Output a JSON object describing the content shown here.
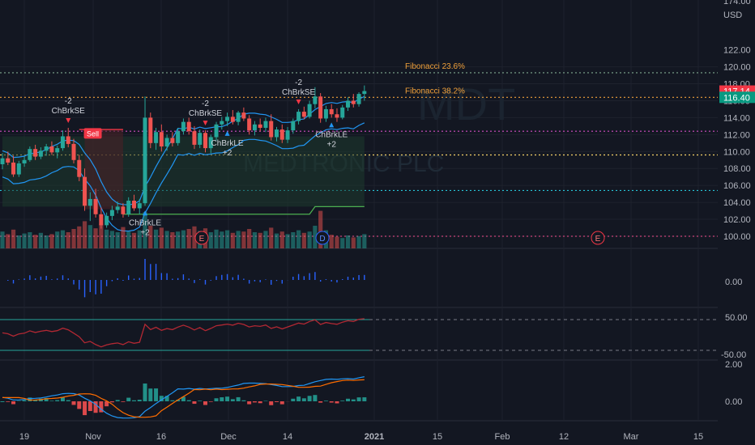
{
  "chart_data": {
    "type": "candlestick",
    "symbol": "MDT",
    "watermark": "MEDTRONIC PLC",
    "currency": "USD",
    "price_axis": {
      "min": 99.5,
      "max": 174.0,
      "ticks": [
        "174.00",
        "122.00",
        "120.00",
        "118.00",
        "116.00",
        "114.00",
        "112.00",
        "110.00",
        "108.00",
        "106.00",
        "104.00",
        "102.00",
        "100.00"
      ]
    },
    "x_ticks": [
      "19",
      "Nov",
      "16",
      "Dec",
      "14",
      "2021",
      "15",
      "Feb",
      "12",
      "Mar",
      "15"
    ],
    "price_badges": [
      {
        "text": "117.14",
        "value": 117.14,
        "color": "#f23645"
      },
      {
        "text": "116.40",
        "value": 116.4,
        "color": "#089981"
      }
    ],
    "fibonacci": [
      {
        "label": "Fibonacci 23.6%",
        "value": 119.3
      },
      {
        "label": "Fibonacci 38.2%",
        "value": 116.4
      }
    ],
    "horizontal_levels": [
      {
        "value": 119.3,
        "color": "#7fa88f"
      },
      {
        "value": 116.4,
        "color": "#f0a03a"
      },
      {
        "value": 112.4,
        "color": "#d24dc1"
      },
      {
        "value": 109.6,
        "color": "#f5d26a"
      },
      {
        "value": 105.4,
        "color": "#26c6da"
      },
      {
        "value": 100.0,
        "color": "#c9437a"
      }
    ],
    "candles": [
      {
        "o": 108.5,
        "h": 109.8,
        "l": 107.9,
        "c": 109.2
      },
      {
        "o": 109.2,
        "h": 110.0,
        "l": 108.4,
        "c": 108.7
      },
      {
        "o": 108.7,
        "h": 109.5,
        "l": 107.0,
        "c": 107.3
      },
      {
        "o": 107.3,
        "h": 108.9,
        "l": 107.0,
        "c": 108.6
      },
      {
        "o": 108.6,
        "h": 109.4,
        "l": 108.2,
        "c": 109.0
      },
      {
        "o": 109.0,
        "h": 110.6,
        "l": 108.8,
        "c": 110.3
      },
      {
        "o": 110.3,
        "h": 110.8,
        "l": 109.0,
        "c": 109.4
      },
      {
        "o": 109.4,
        "h": 110.5,
        "l": 109.1,
        "c": 110.1
      },
      {
        "o": 110.1,
        "h": 110.9,
        "l": 109.5,
        "c": 110.6
      },
      {
        "o": 110.6,
        "h": 111.2,
        "l": 109.6,
        "c": 109.9
      },
      {
        "o": 109.9,
        "h": 110.7,
        "l": 109.2,
        "c": 110.4
      },
      {
        "o": 110.4,
        "h": 112.5,
        "l": 110.1,
        "c": 111.8
      },
      {
        "o": 111.8,
        "h": 112.8,
        "l": 110.5,
        "c": 110.9
      },
      {
        "o": 110.9,
        "h": 111.5,
        "l": 108.6,
        "c": 109.0
      },
      {
        "o": 109.0,
        "h": 109.6,
        "l": 106.5,
        "c": 107.0
      },
      {
        "o": 107.0,
        "h": 108.0,
        "l": 103.0,
        "c": 103.6
      },
      {
        "o": 103.6,
        "h": 105.2,
        "l": 101.8,
        "c": 104.4
      },
      {
        "o": 104.4,
        "h": 105.6,
        "l": 102.2,
        "c": 102.6
      },
      {
        "o": 102.6,
        "h": 103.4,
        "l": 100.9,
        "c": 101.3
      },
      {
        "o": 101.3,
        "h": 102.8,
        "l": 101.0,
        "c": 102.4
      },
      {
        "o": 102.4,
        "h": 103.6,
        "l": 101.9,
        "c": 103.1
      },
      {
        "o": 103.1,
        "h": 104.1,
        "l": 102.7,
        "c": 103.5
      },
      {
        "o": 103.5,
        "h": 103.9,
        "l": 102.2,
        "c": 102.6
      },
      {
        "o": 102.6,
        "h": 104.6,
        "l": 102.3,
        "c": 104.2
      },
      {
        "o": 104.2,
        "h": 104.9,
        "l": 103.0,
        "c": 103.3
      },
      {
        "o": 103.3,
        "h": 104.4,
        "l": 102.6,
        "c": 103.9
      },
      {
        "o": 103.9,
        "h": 116.5,
        "l": 103.6,
        "c": 114.0
      },
      {
        "o": 114.0,
        "h": 114.6,
        "l": 110.4,
        "c": 111.0
      },
      {
        "o": 111.0,
        "h": 112.8,
        "l": 110.2,
        "c": 112.3
      },
      {
        "o": 112.3,
        "h": 113.2,
        "l": 110.0,
        "c": 110.6
      },
      {
        "o": 110.6,
        "h": 112.0,
        "l": 110.1,
        "c": 111.6
      },
      {
        "o": 111.6,
        "h": 112.3,
        "l": 110.6,
        "c": 111.0
      },
      {
        "o": 111.0,
        "h": 112.8,
        "l": 110.7,
        "c": 112.4
      },
      {
        "o": 112.4,
        "h": 113.9,
        "l": 112.0,
        "c": 113.5
      },
      {
        "o": 113.5,
        "h": 114.0,
        "l": 112.0,
        "c": 112.4
      },
      {
        "o": 112.4,
        "h": 113.0,
        "l": 110.3,
        "c": 110.8
      },
      {
        "o": 110.8,
        "h": 112.6,
        "l": 110.4,
        "c": 112.2
      },
      {
        "o": 112.2,
        "h": 112.5,
        "l": 109.9,
        "c": 110.4
      },
      {
        "o": 110.4,
        "h": 112.0,
        "l": 109.8,
        "c": 111.7
      },
      {
        "o": 111.7,
        "h": 113.5,
        "l": 111.3,
        "c": 113.2
      },
      {
        "o": 113.2,
        "h": 114.1,
        "l": 112.6,
        "c": 113.6
      },
      {
        "o": 113.6,
        "h": 114.6,
        "l": 113.0,
        "c": 114.1
      },
      {
        "o": 114.1,
        "h": 114.9,
        "l": 113.2,
        "c": 113.5
      },
      {
        "o": 113.5,
        "h": 114.8,
        "l": 113.1,
        "c": 114.6
      },
      {
        "o": 114.6,
        "h": 115.2,
        "l": 113.6,
        "c": 113.9
      },
      {
        "o": 113.9,
        "h": 114.3,
        "l": 112.0,
        "c": 112.5
      },
      {
        "o": 112.5,
        "h": 113.6,
        "l": 111.9,
        "c": 113.2
      },
      {
        "o": 113.2,
        "h": 113.9,
        "l": 112.4,
        "c": 112.8
      },
      {
        "o": 112.8,
        "h": 114.0,
        "l": 112.3,
        "c": 113.6
      },
      {
        "o": 113.6,
        "h": 114.4,
        "l": 111.3,
        "c": 111.7
      },
      {
        "o": 111.7,
        "h": 112.9,
        "l": 111.2,
        "c": 112.6
      },
      {
        "o": 112.6,
        "h": 113.2,
        "l": 111.0,
        "c": 111.4
      },
      {
        "o": 111.4,
        "h": 112.9,
        "l": 111.0,
        "c": 112.5
      },
      {
        "o": 112.5,
        "h": 113.9,
        "l": 112.1,
        "c": 113.6
      },
      {
        "o": 113.6,
        "h": 115.0,
        "l": 113.2,
        "c": 114.7
      },
      {
        "o": 114.7,
        "h": 115.3,
        "l": 113.8,
        "c": 114.1
      },
      {
        "o": 114.1,
        "h": 116.0,
        "l": 113.9,
        "c": 115.6
      },
      {
        "o": 115.6,
        "h": 117.6,
        "l": 115.1,
        "c": 116.5
      },
      {
        "o": 116.5,
        "h": 116.9,
        "l": 113.4,
        "c": 113.9
      },
      {
        "o": 113.9,
        "h": 115.4,
        "l": 113.5,
        "c": 115.0
      },
      {
        "o": 115.0,
        "h": 115.6,
        "l": 114.0,
        "c": 114.4
      },
      {
        "o": 114.4,
        "h": 115.1,
        "l": 113.5,
        "c": 114.0
      },
      {
        "o": 114.0,
        "h": 115.5,
        "l": 113.8,
        "c": 115.2
      },
      {
        "o": 115.2,
        "h": 116.4,
        "l": 114.8,
        "c": 116.0
      },
      {
        "o": 116.0,
        "h": 116.8,
        "l": 115.2,
        "c": 115.6
      },
      {
        "o": 115.6,
        "h": 117.0,
        "l": 115.3,
        "c": 116.8
      },
      {
        "o": 116.8,
        "h": 117.8,
        "l": 116.0,
        "c": 117.14
      }
    ],
    "volume": [
      2.6,
      2.2,
      2.9,
      2.0,
      2.3,
      2.5,
      2.1,
      2.4,
      2.0,
      2.2,
      2.6,
      2.8,
      2.5,
      3.0,
      3.4,
      4.2,
      3.6,
      3.1,
      3.8,
      2.9,
      2.7,
      2.5,
      3.3,
      2.6,
      2.4,
      2.8,
      5.6,
      3.5,
      2.9,
      3.2,
      2.7,
      2.5,
      2.6,
      2.8,
      3.0,
      3.4,
      2.7,
      3.1,
      2.5,
      2.9,
      2.6,
      2.8,
      2.4,
      2.7,
      2.6,
      3.0,
      2.5,
      2.4,
      2.7,
      3.2,
      2.3,
      2.6,
      2.2,
      2.5,
      2.8,
      2.4,
      2.6,
      3.5,
      5.8,
      2.8,
      2.1,
      1.8,
      1.6,
      2.0,
      1.7,
      1.9,
      2.2
    ],
    "signals": [
      {
        "type": "short",
        "label": "ChBrkSE",
        "extra": "-2",
        "bar": 12
      },
      {
        "type": "long",
        "label": "ChBrkLE",
        "extra": "+2",
        "bar": 26
      },
      {
        "type": "short",
        "label": "ChBrkSE",
        "extra": "-2",
        "bar": 37
      },
      {
        "type": "long",
        "label": "ChBrkLE",
        "extra": "+2",
        "bar": 41
      },
      {
        "type": "short",
        "label": "ChBrkSE",
        "extra": "-2",
        "bar": 54
      },
      {
        "type": "long",
        "label": "ChBrkLE",
        "extra": "+2",
        "bar": 60
      }
    ],
    "sell_label": "Sell",
    "event_markers": [
      {
        "text": "E",
        "bar": 43
      },
      {
        "text": "D",
        "bar": 68
      },
      {
        "text": "E",
        "bar": 130
      }
    ],
    "histogram_panel": {
      "ticks": [
        "0.00"
      ]
    },
    "oscillator_panel": {
      "ticks": [
        "50.00",
        "-50.00"
      ],
      "levels": [
        50,
        -50
      ]
    },
    "macd_panel": {
      "ticks": [
        "2.00",
        "0.00"
      ]
    }
  }
}
